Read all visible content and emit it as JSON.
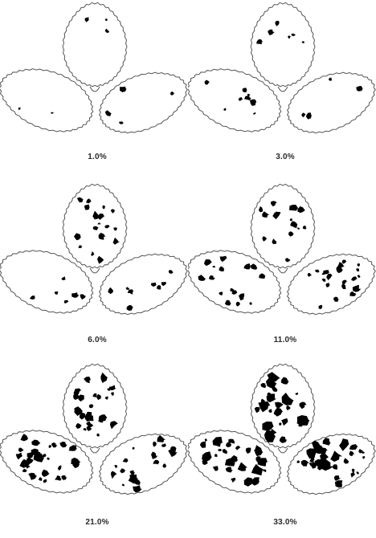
{
  "diagram": {
    "leaf_color": "#ffffff",
    "outline_color": "#555555",
    "lesion_color": "#000000",
    "panels": [
      {
        "caption": "1.0%",
        "severity_percent": 1.0
      },
      {
        "caption": "3.0%",
        "severity_percent": 3.0
      },
      {
        "caption": "6.0%",
        "severity_percent": 6.0
      },
      {
        "caption": "11.0%",
        "severity_percent": 11.0
      },
      {
        "caption": "21.0%",
        "severity_percent": 21.0
      },
      {
        "caption": "33.0%",
        "severity_percent": 33.0
      }
    ]
  }
}
